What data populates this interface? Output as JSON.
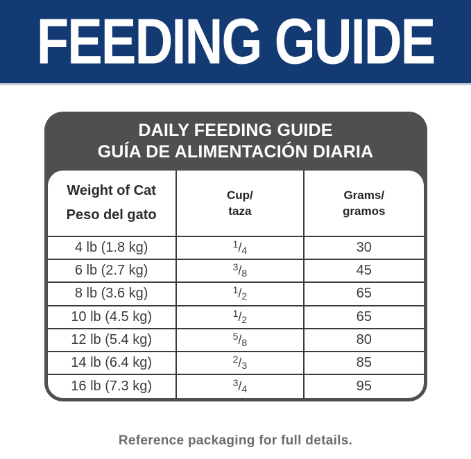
{
  "banner": {
    "title": "FEEDING GUIDE",
    "bg_color": "#143A73",
    "text_color": "#FFFFFF"
  },
  "table": {
    "header": {
      "line1": "DAILY FEEDING GUIDE",
      "line2": "GUÍA DE ALIMENTACIÓN DIARIA",
      "bg_color": "#4E4F51",
      "text_color": "#FFFFFF"
    },
    "fraction_separator": "/",
    "columns": [
      {
        "line1": "Weight of Cat",
        "line2": "Peso del gato"
      },
      {
        "line1": "Cup/",
        "line2": "taza"
      },
      {
        "line1": "Grams/",
        "line2": "gramos"
      }
    ],
    "rows": [
      {
        "weight": "4 lb (1.8 kg)",
        "cup_num": "1",
        "cup_den": "4",
        "grams": "30"
      },
      {
        "weight": "6 lb (2.7 kg)",
        "cup_num": "3",
        "cup_den": "8",
        "grams": "45"
      },
      {
        "weight": "8 lb (3.6 kg)",
        "cup_num": "1",
        "cup_den": "2",
        "grams": "65"
      },
      {
        "weight": "10 lb (4.5 kg)",
        "cup_num": "1",
        "cup_den": "2",
        "grams": "65"
      },
      {
        "weight": "12 lb (5.4 kg)",
        "cup_num": "5",
        "cup_den": "8",
        "grams": "80"
      },
      {
        "weight": "14 lb (6.4 kg)",
        "cup_num": "2",
        "cup_den": "3",
        "grams": "85"
      },
      {
        "weight": "16 lb (7.3 kg)",
        "cup_num": "3",
        "cup_den": "4",
        "grams": "95"
      }
    ]
  },
  "footer": {
    "note": "Reference packaging for full details."
  }
}
